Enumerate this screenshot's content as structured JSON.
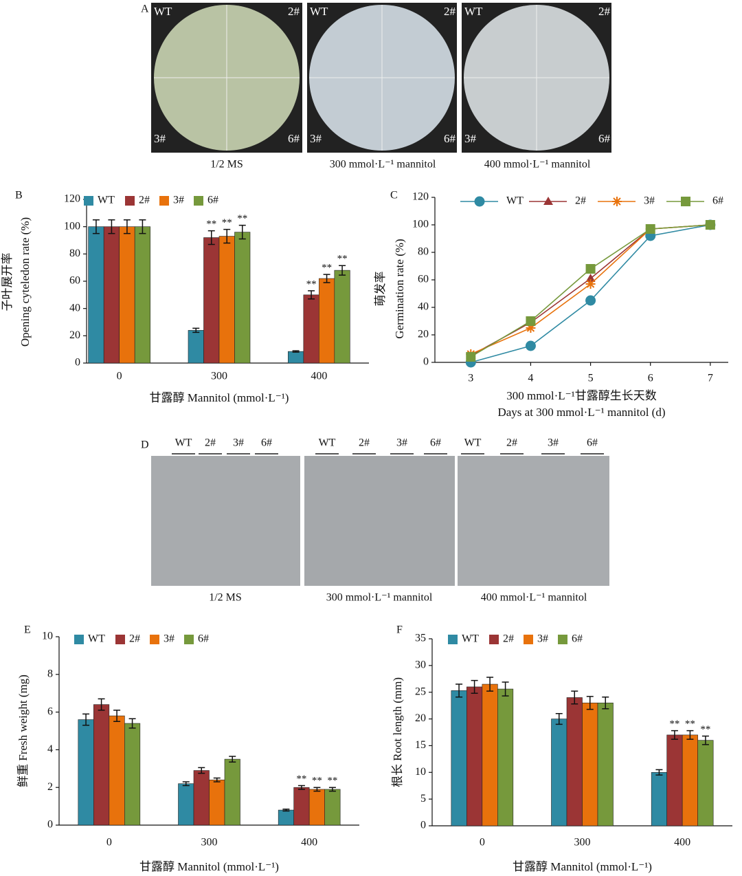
{
  "panel_a": {
    "letter": "A",
    "plate_labels": [
      "WT",
      "2#",
      "3#",
      "6#"
    ],
    "captions": [
      "1/2 MS",
      "300 mmol·L⁻¹ mannitol",
      "400 mmol·L⁻¹ mannitol"
    ]
  },
  "panel_d": {
    "letter": "D",
    "lane_labels": [
      "WT",
      "2#",
      "3#",
      "6#"
    ],
    "captions": [
      "1/2 MS",
      "300 mmol·L⁻¹ mannitol",
      "400 mmol·L⁻¹ mannitol"
    ]
  },
  "chart_data": [
    {
      "type": "bar",
      "panel": "B",
      "ylabel_zh": "子叶展开率",
      "ylabel": "Opening cyteledon rate (%)",
      "xlabel": "甘露醇 Mannitol (mmol·L⁻¹)",
      "categories": [
        "0",
        "300",
        "400"
      ],
      "ylim": [
        0,
        120
      ],
      "yticks": [
        0,
        20,
        40,
        60,
        80,
        100,
        120
      ],
      "series": [
        {
          "name": "WT",
          "color": "#2f8aa3",
          "values": [
            100,
            24,
            8.5
          ],
          "errors": [
            5,
            1.5,
            0.5
          ],
          "significance": [
            null,
            null,
            null
          ]
        },
        {
          "name": "2#",
          "color": "#9b3535",
          "values": [
            100,
            92,
            50
          ],
          "errors": [
            5,
            5,
            3
          ],
          "significance": [
            null,
            "**",
            "**"
          ]
        },
        {
          "name": "3#",
          "color": "#e8720c",
          "values": [
            100,
            93,
            62
          ],
          "errors": [
            5,
            5,
            3
          ],
          "significance": [
            null,
            "**",
            "**"
          ]
        },
        {
          "name": "6#",
          "color": "#76993c",
          "values": [
            100,
            96,
            68
          ],
          "errors": [
            5,
            5,
            3.5
          ],
          "significance": [
            null,
            "**",
            "**"
          ]
        }
      ]
    },
    {
      "type": "line",
      "panel": "C",
      "ylabel_zh": "萌发率",
      "ylabel": "Germination rate (%)",
      "xlabel_zh": "300 mmol·L⁻¹甘露醇生长天数",
      "xlabel": "Days at 300 mmol·L⁻¹ mannitol (d)",
      "x": [
        3,
        4,
        5,
        6,
        7
      ],
      "xlim": [
        2.4,
        7.3
      ],
      "xticks": [
        3,
        4,
        5,
        6,
        7
      ],
      "ylim": [
        0,
        120
      ],
      "yticks": [
        0,
        20,
        40,
        60,
        80,
        100,
        120
      ],
      "series": [
        {
          "name": "WT",
          "color": "#2f8aa3",
          "marker": "circle",
          "values": [
            0,
            12,
            45,
            92,
            100
          ]
        },
        {
          "name": "2#",
          "color": "#9b3535",
          "marker": "triangle",
          "values": [
            5,
            29,
            61,
            97,
            100
          ]
        },
        {
          "name": "3#",
          "color": "#e8720c",
          "marker": "star",
          "values": [
            6,
            25,
            57,
            97,
            100
          ]
        },
        {
          "name": "6#",
          "color": "#76993c",
          "marker": "square",
          "values": [
            4,
            30,
            68,
            97,
            100
          ]
        }
      ]
    },
    {
      "type": "bar",
      "panel": "E",
      "ylabel": "鲜重 Fresh weight (mg)",
      "xlabel": "甘露醇 Mannitol (mmol·L⁻¹)",
      "categories": [
        "0",
        "300",
        "400"
      ],
      "ylim": [
        0,
        10
      ],
      "yticks": [
        0,
        2,
        4,
        6,
        8,
        10
      ],
      "series": [
        {
          "name": "WT",
          "color": "#2f8aa3",
          "values": [
            5.6,
            2.2,
            0.8
          ],
          "errors": [
            0.3,
            0.1,
            0.05
          ],
          "significance": [
            null,
            null,
            null
          ]
        },
        {
          "name": "2#",
          "color": "#9b3535",
          "values": [
            6.4,
            2.9,
            2.0
          ],
          "errors": [
            0.3,
            0.15,
            0.1
          ],
          "significance": [
            null,
            null,
            "**"
          ]
        },
        {
          "name": "3#",
          "color": "#e8720c",
          "values": [
            5.8,
            2.4,
            1.9
          ],
          "errors": [
            0.3,
            0.1,
            0.1
          ],
          "significance": [
            null,
            null,
            "**"
          ]
        },
        {
          "name": "6#",
          "color": "#76993c",
          "values": [
            5.4,
            3.5,
            1.9
          ],
          "errors": [
            0.25,
            0.15,
            0.1
          ],
          "significance": [
            null,
            null,
            "**"
          ]
        }
      ]
    },
    {
      "type": "bar",
      "panel": "F",
      "ylabel": "根长 Root length (mm)",
      "xlabel": "甘露醇 Mannitol (mmol·L⁻¹)",
      "categories": [
        "0",
        "300",
        "400"
      ],
      "ylim": [
        0,
        35
      ],
      "yticks": [
        0,
        5,
        10,
        15,
        20,
        25,
        30,
        35
      ],
      "series": [
        {
          "name": "WT",
          "color": "#2f8aa3",
          "values": [
            25.3,
            20,
            10
          ],
          "errors": [
            1.2,
            1,
            0.5
          ],
          "significance": [
            null,
            null,
            null
          ]
        },
        {
          "name": "2#",
          "color": "#9b3535",
          "values": [
            26,
            24,
            17
          ],
          "errors": [
            1.2,
            1.2,
            0.8
          ],
          "significance": [
            null,
            null,
            "**"
          ]
        },
        {
          "name": "3#",
          "color": "#e8720c",
          "values": [
            26.5,
            23,
            17
          ],
          "errors": [
            1.3,
            1.2,
            0.8
          ],
          "significance": [
            null,
            null,
            "**"
          ]
        },
        {
          "name": "6#",
          "color": "#76993c",
          "values": [
            25.6,
            23,
            16
          ],
          "errors": [
            1.3,
            1.1,
            0.8
          ],
          "significance": [
            null,
            null,
            "**"
          ]
        }
      ]
    }
  ]
}
